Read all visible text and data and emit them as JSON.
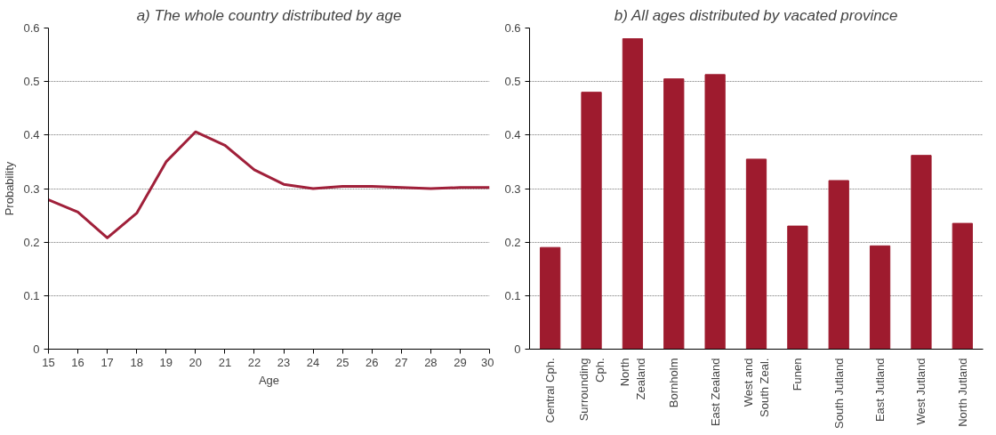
{
  "chart_data": [
    {
      "type": "line",
      "title": "a) The whole country distributed by age",
      "xlabel": "Age",
      "ylabel": "Probability",
      "x": [
        15,
        16,
        17,
        18,
        19,
        20,
        21,
        22,
        23,
        24,
        25,
        26,
        27,
        28,
        29,
        30
      ],
      "series": [
        {
          "color": "#a0203a",
          "values": [
            0.279,
            0.256,
            0.208,
            0.254,
            0.35,
            0.406,
            0.381,
            0.335,
            0.308,
            0.3,
            0.304,
            0.304,
            0.302,
            0.3,
            0.302,
            0.302
          ]
        }
      ],
      "xlim": [
        15,
        30
      ],
      "xticks": [
        15,
        16,
        17,
        18,
        19,
        20,
        21,
        22,
        23,
        24,
        25,
        26,
        27,
        28,
        29,
        30
      ],
      "ylim": [
        0,
        0.6
      ],
      "yticks": [
        0,
        0.1,
        0.2,
        0.3,
        0.4,
        0.5,
        0.6
      ],
      "grid": "y",
      "marker": "none",
      "line_style": "solid"
    },
    {
      "type": "bar",
      "title": "b) All ages distributed by vacated province",
      "categories": [
        "Central Cph.",
        "Surrounding\nCph.",
        "North\nZealand",
        "Bornholm",
        "East Zealand",
        "West and\nSouth Zeal.",
        "Funen",
        "South Jutland",
        "East Jutland",
        "West Jutland",
        "North Jutland"
      ],
      "series": [
        {
          "color": "#9e1b2e",
          "values": [
            0.19,
            0.48,
            0.58,
            0.505,
            0.513,
            0.355,
            0.23,
            0.315,
            0.193,
            0.362,
            0.235
          ]
        }
      ],
      "ylim": [
        0,
        0.6
      ],
      "yticks": [
        0,
        0.1,
        0.2,
        0.3,
        0.4,
        0.5,
        0.6
      ],
      "grid": "y"
    }
  ]
}
